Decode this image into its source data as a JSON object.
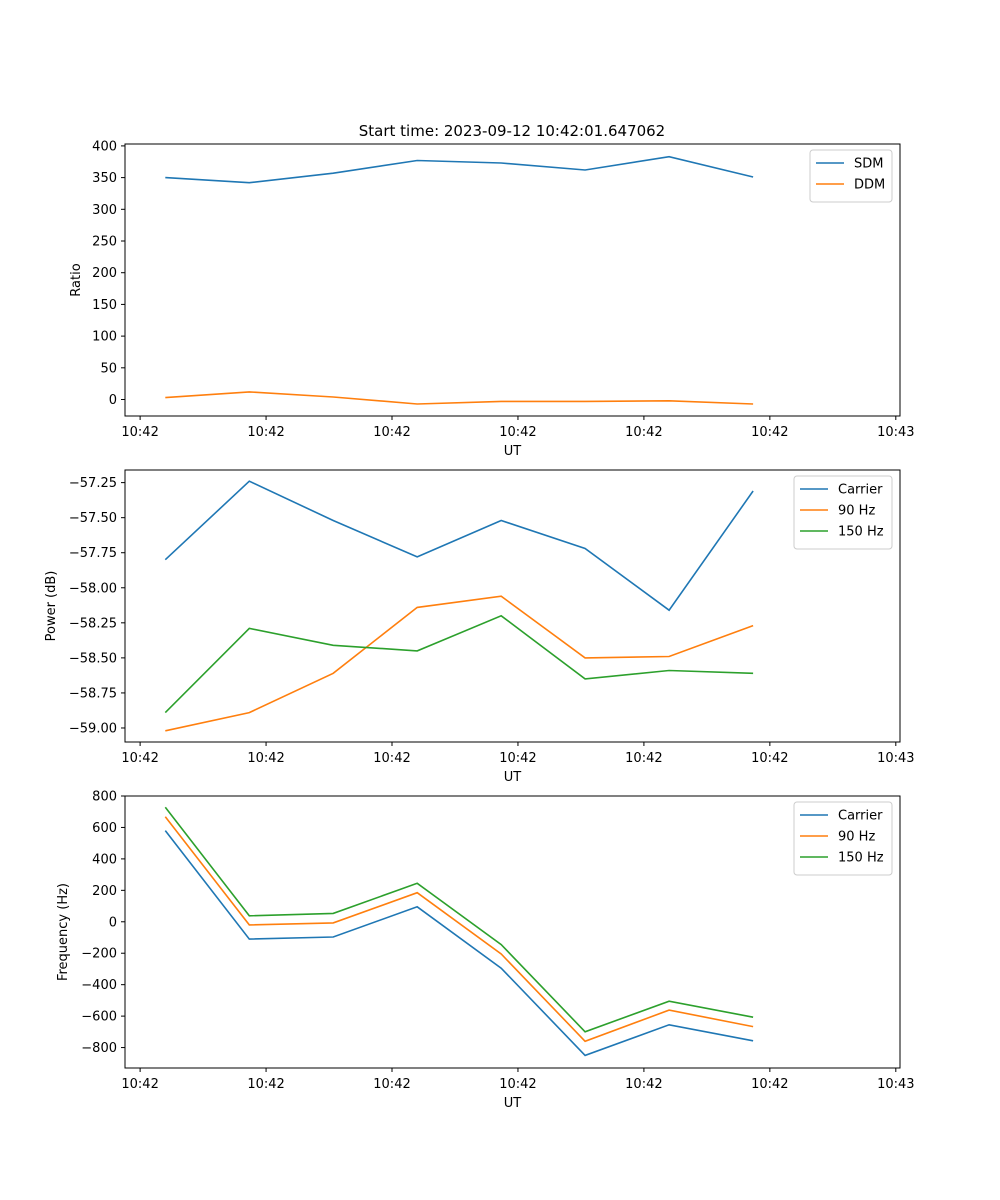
{
  "figure_title": "Start time: 2023-09-12 10:42:01.647062",
  "chart_data": [
    {
      "type": "line",
      "title": "Start time: 2023-09-12 10:42:01.647062",
      "xlabel": "UT",
      "ylabel": "Ratio",
      "xlim": [
        -0.48,
        8.75
      ],
      "ylim": [
        -26,
        403
      ],
      "x_ticks": [
        -0.3,
        1.2,
        2.7,
        4.2,
        5.7,
        7.2,
        8.7
      ],
      "x_tick_labels": [
        "10:42",
        "10:42",
        "10:42",
        "10:42",
        "10:42",
        "10:42",
        "10:43"
      ],
      "y_ticks": [
        0,
        50,
        100,
        150,
        200,
        250,
        300,
        350,
        400
      ],
      "y_tick_labels": [
        "0",
        "50",
        "100",
        "150",
        "200",
        "250",
        "300",
        "350",
        "400"
      ],
      "legend": "upper right",
      "x": [
        0,
        1,
        2,
        3,
        4,
        5,
        6,
        7
      ],
      "series": [
        {
          "name": "SDM",
          "color": "#1f77b4",
          "values": [
            350,
            342,
            357,
            377,
            373,
            362,
            383,
            351
          ]
        },
        {
          "name": "DDM",
          "color": "#ff7f0e",
          "values": [
            3,
            12,
            4,
            -7,
            -3,
            -3,
            -2,
            -7
          ]
        }
      ]
    },
    {
      "type": "line",
      "title": "",
      "xlabel": "UT",
      "ylabel": "Power (dB)",
      "xlim": [
        -0.48,
        8.75
      ],
      "ylim": [
        -59.1,
        -57.16
      ],
      "x_ticks": [
        -0.3,
        1.2,
        2.7,
        4.2,
        5.7,
        7.2,
        8.7
      ],
      "x_tick_labels": [
        "10:42",
        "10:42",
        "10:42",
        "10:42",
        "10:42",
        "10:42",
        "10:43"
      ],
      "y_ticks": [
        -59.0,
        -58.75,
        -58.5,
        -58.25,
        -58.0,
        -57.75,
        -57.5,
        -57.25
      ],
      "y_tick_labels": [
        "−59.00",
        "−58.75",
        "−58.50",
        "−58.25",
        "−58.00",
        "−57.75",
        "−57.50",
        "−57.25"
      ],
      "legend": "upper right",
      "x": [
        0,
        1,
        2,
        3,
        4,
        5,
        6,
        7
      ],
      "series": [
        {
          "name": "Carrier",
          "color": "#1f77b4",
          "values": [
            -57.8,
            -57.24,
            -57.52,
            -57.78,
            -57.52,
            -57.72,
            -58.16,
            -57.31
          ]
        },
        {
          "name": "90 Hz",
          "color": "#ff7f0e",
          "values": [
            -59.02,
            -58.89,
            -58.61,
            -58.14,
            -58.06,
            -58.5,
            -58.49,
            -58.27
          ]
        },
        {
          "name": "150 Hz",
          "color": "#2ca02c",
          "values": [
            -58.89,
            -58.29,
            -58.41,
            -58.45,
            -58.2,
            -58.65,
            -58.59,
            -58.61
          ]
        }
      ]
    },
    {
      "type": "line",
      "title": "",
      "xlabel": "UT",
      "ylabel": "Frequency (Hz)",
      "xlim": [
        -0.48,
        8.75
      ],
      "ylim": [
        -930,
        800
      ],
      "x_ticks": [
        -0.3,
        1.2,
        2.7,
        4.2,
        5.7,
        7.2,
        8.7
      ],
      "x_tick_labels": [
        "10:42",
        "10:42",
        "10:42",
        "10:42",
        "10:42",
        "10:42",
        "10:43"
      ],
      "y_ticks": [
        -800,
        -600,
        -400,
        -200,
        0,
        200,
        400,
        600,
        800
      ],
      "y_tick_labels": [
        "−800",
        "−600",
        "−400",
        "−200",
        "0",
        "200",
        "400",
        "600",
        "800"
      ],
      "legend": "upper right",
      "x": [
        0,
        1,
        2,
        3,
        4,
        5,
        6,
        7
      ],
      "series": [
        {
          "name": "Carrier",
          "color": "#1f77b4",
          "values": [
            580,
            -110,
            -97,
            95,
            -295,
            -850,
            -655,
            -757
          ]
        },
        {
          "name": "90 Hz",
          "color": "#ff7f0e",
          "values": [
            668,
            -20,
            -7,
            185,
            -205,
            -760,
            -562,
            -667
          ]
        },
        {
          "name": "150 Hz",
          "color": "#2ca02c",
          "values": [
            728,
            38,
            53,
            245,
            -145,
            -700,
            -505,
            -607
          ]
        }
      ]
    }
  ]
}
